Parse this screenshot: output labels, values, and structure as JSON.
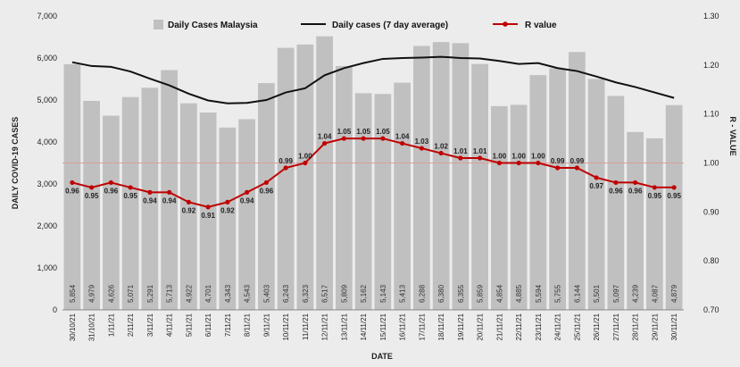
{
  "chart_data": {
    "type": "bar",
    "title": "",
    "xlabel": "DATE",
    "ylabel_left": "DAILY COVID-19 CASES",
    "ylabel_right": "R - VALUE",
    "ylim_left": [
      0,
      7000
    ],
    "ylim_right": [
      0.7,
      1.3
    ],
    "yticks_left": [
      "0",
      "1,000",
      "2,000",
      "3,000",
      "4,000",
      "5,000",
      "6,000",
      "7,000"
    ],
    "yticks_right": [
      "0.70",
      "0.80",
      "0.90",
      "1.00",
      "1.10",
      "1.20",
      "1.30"
    ],
    "threshold_r": 1.0,
    "threshold_color": "#d9a09a",
    "categories": [
      "30/10/21",
      "31/10/21",
      "1/11/21",
      "2/11/21",
      "3/11/21",
      "4/11/21",
      "5/11/21",
      "6/11/21",
      "7/11/21",
      "8/11/21",
      "9/11/21",
      "10/11/21",
      "11/11/21",
      "12/11/21",
      "13/11/21",
      "14/11/21",
      "15/11/21",
      "16/11/21",
      "17/11/21",
      "18/11/21",
      "19/11/21",
      "20/11/21",
      "21/11/21",
      "22/11/21",
      "23/11/21",
      "24/11/21",
      "25/11/21",
      "26/11/21",
      "27/11/21",
      "28/11/21",
      "29/11/21",
      "30/11/21"
    ],
    "series": [
      {
        "name": "Daily Cases Malaysia",
        "kind": "bar",
        "color": "#c0c0c0",
        "values": [
          5854,
          4979,
          4626,
          5071,
          5291,
          5713,
          4922,
          4701,
          4343,
          4543,
          5403,
          6243,
          6323,
          6517,
          5809,
          5162,
          5143,
          5413,
          6288,
          6380,
          6355,
          5859,
          4854,
          4885,
          5594,
          5755,
          6144,
          5501,
          5097,
          4239,
          4087,
          4879
        ],
        "labels": [
          "5,854",
          "4,979",
          "4,626",
          "5,071",
          "5,291",
          "5,713",
          "4,922",
          "4,701",
          "4,343",
          "4,543",
          "5,403",
          "6,243",
          "6,323",
          "6,517",
          "5,809",
          "5,162",
          "5,143",
          "5,413",
          "6,288",
          "6,380",
          "6,355",
          "5,859",
          "4,854",
          "4,885",
          "5,594",
          "5,755",
          "6,144",
          "5,501",
          "5,097",
          "4,239",
          "4,087",
          "4,879"
        ]
      },
      {
        "name": "Daily cases (7 day average)",
        "kind": "line",
        "color": "#111111",
        "values": [
          5900,
          5810,
          5790,
          5680,
          5510,
          5350,
          5150,
          4990,
          4920,
          4930,
          5000,
          5180,
          5280,
          5590,
          5760,
          5880,
          5980,
          6000,
          6010,
          6030,
          6000,
          5990,
          5930,
          5860,
          5880,
          5760,
          5690,
          5560,
          5420,
          5310,
          5180,
          5050
        ]
      },
      {
        "name": "R value",
        "kind": "line",
        "axis": "right",
        "color": "#c00000",
        "values": [
          0.96,
          0.95,
          0.96,
          0.95,
          0.94,
          0.94,
          0.92,
          0.91,
          0.92,
          0.94,
          0.96,
          0.99,
          1.0,
          1.04,
          1.05,
          1.05,
          1.05,
          1.04,
          1.03,
          1.02,
          1.01,
          1.01,
          1.0,
          1.0,
          1.0,
          0.99,
          0.99,
          0.97,
          0.96,
          0.96,
          0.95,
          0.95
        ],
        "labels": [
          "0.96",
          "0.95",
          "0.96",
          "0.95",
          "0.94",
          "0.94",
          "0.92",
          "0.91",
          "0.92",
          "0.94",
          "0.96",
          "0.99",
          "1.00",
          "1.04",
          "1.05",
          "1.05",
          "1.05",
          "1.04",
          "1.03",
          "1.02",
          "1.01",
          "1.01",
          "1.00",
          "1.00",
          "1.00",
          "0.99",
          "0.99",
          "0.97",
          "0.96",
          "0.96",
          "0.95",
          "0.95"
        ]
      }
    ],
    "legend_position": "top"
  }
}
